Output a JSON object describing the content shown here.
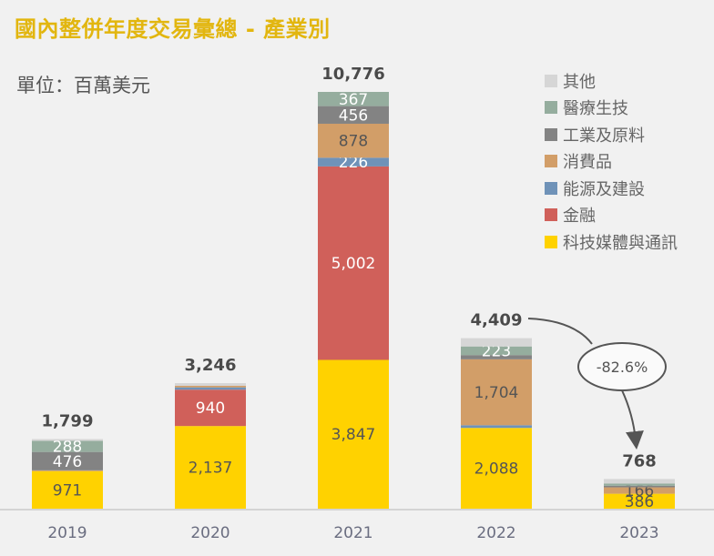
{
  "title": "國內整併年度交易彙總 - 產業別",
  "unit_label": "單位：百萬美元",
  "annotation": {
    "label": "-82.6%",
    "from": "2022",
    "to": "2023"
  },
  "chart_data": {
    "type": "bar",
    "stacked": true,
    "title": "國內整併年度交易彙總 - 產業別",
    "xlabel": "",
    "ylabel": "百萬美元",
    "grid": false,
    "legend_position": "top-right",
    "categories": [
      "2019",
      "2020",
      "2021",
      "2022",
      "2023"
    ],
    "totals": [
      1799,
      3246,
      10776,
      4409,
      768
    ],
    "totals_labels": [
      "1,799",
      "3,246",
      "10,776",
      "4,409",
      "768"
    ],
    "series": [
      {
        "name": "科技媒體與通訊",
        "color": "#ffd200",
        "text_color": "#555555",
        "values": [
          971,
          2137,
          3847,
          2088,
          386
        ],
        "labels": [
          "971",
          "2,137",
          "3,847",
          "2,088",
          "386"
        ]
      },
      {
        "name": "金融",
        "color": "#d0605a",
        "text_color": "#ffffff",
        "values": [
          0,
          940,
          5002,
          0,
          0
        ],
        "labels": [
          "",
          "940",
          "5,002",
          "",
          ""
        ]
      },
      {
        "name": "能源及建設",
        "color": "#6f92b8",
        "text_color": "#ffffff",
        "values": [
          0,
          60,
          226,
          70,
          0
        ],
        "labels": [
          "",
          "",
          "226",
          "",
          ""
        ]
      },
      {
        "name": "消費品",
        "color": "#d29e68",
        "text_color": "#555555",
        "values": [
          20,
          40,
          878,
          1704,
          166
        ],
        "labels": [
          "",
          "",
          "878",
          "1,704",
          "166"
        ]
      },
      {
        "name": "工業及原料",
        "color": "#838383",
        "text_color": "#ffffff",
        "values": [
          476,
          0,
          456,
          110,
          40
        ],
        "labels": [
          "476",
          "",
          "456",
          "",
          ""
        ]
      },
      {
        "name": "醫療生技",
        "color": "#95ad9e",
        "text_color": "#ffffff",
        "values": [
          288,
          0,
          367,
          223,
          60
        ],
        "labels": [
          "288",
          "",
          "367",
          "223",
          ""
        ]
      },
      {
        "name": "其他",
        "color": "#d6d6d6",
        "text_color": "#555555",
        "values": [
          44,
          69,
          0,
          214,
          116
        ],
        "labels": [
          "",
          "",
          "",
          "",
          ""
        ]
      }
    ],
    "legend_order": [
      "其他",
      "醫療生技",
      "工業及原料",
      "消費品",
      "能源及建設",
      "金融",
      "科技媒體與通訊"
    ],
    "ylim": [
      0,
      10776
    ]
  }
}
